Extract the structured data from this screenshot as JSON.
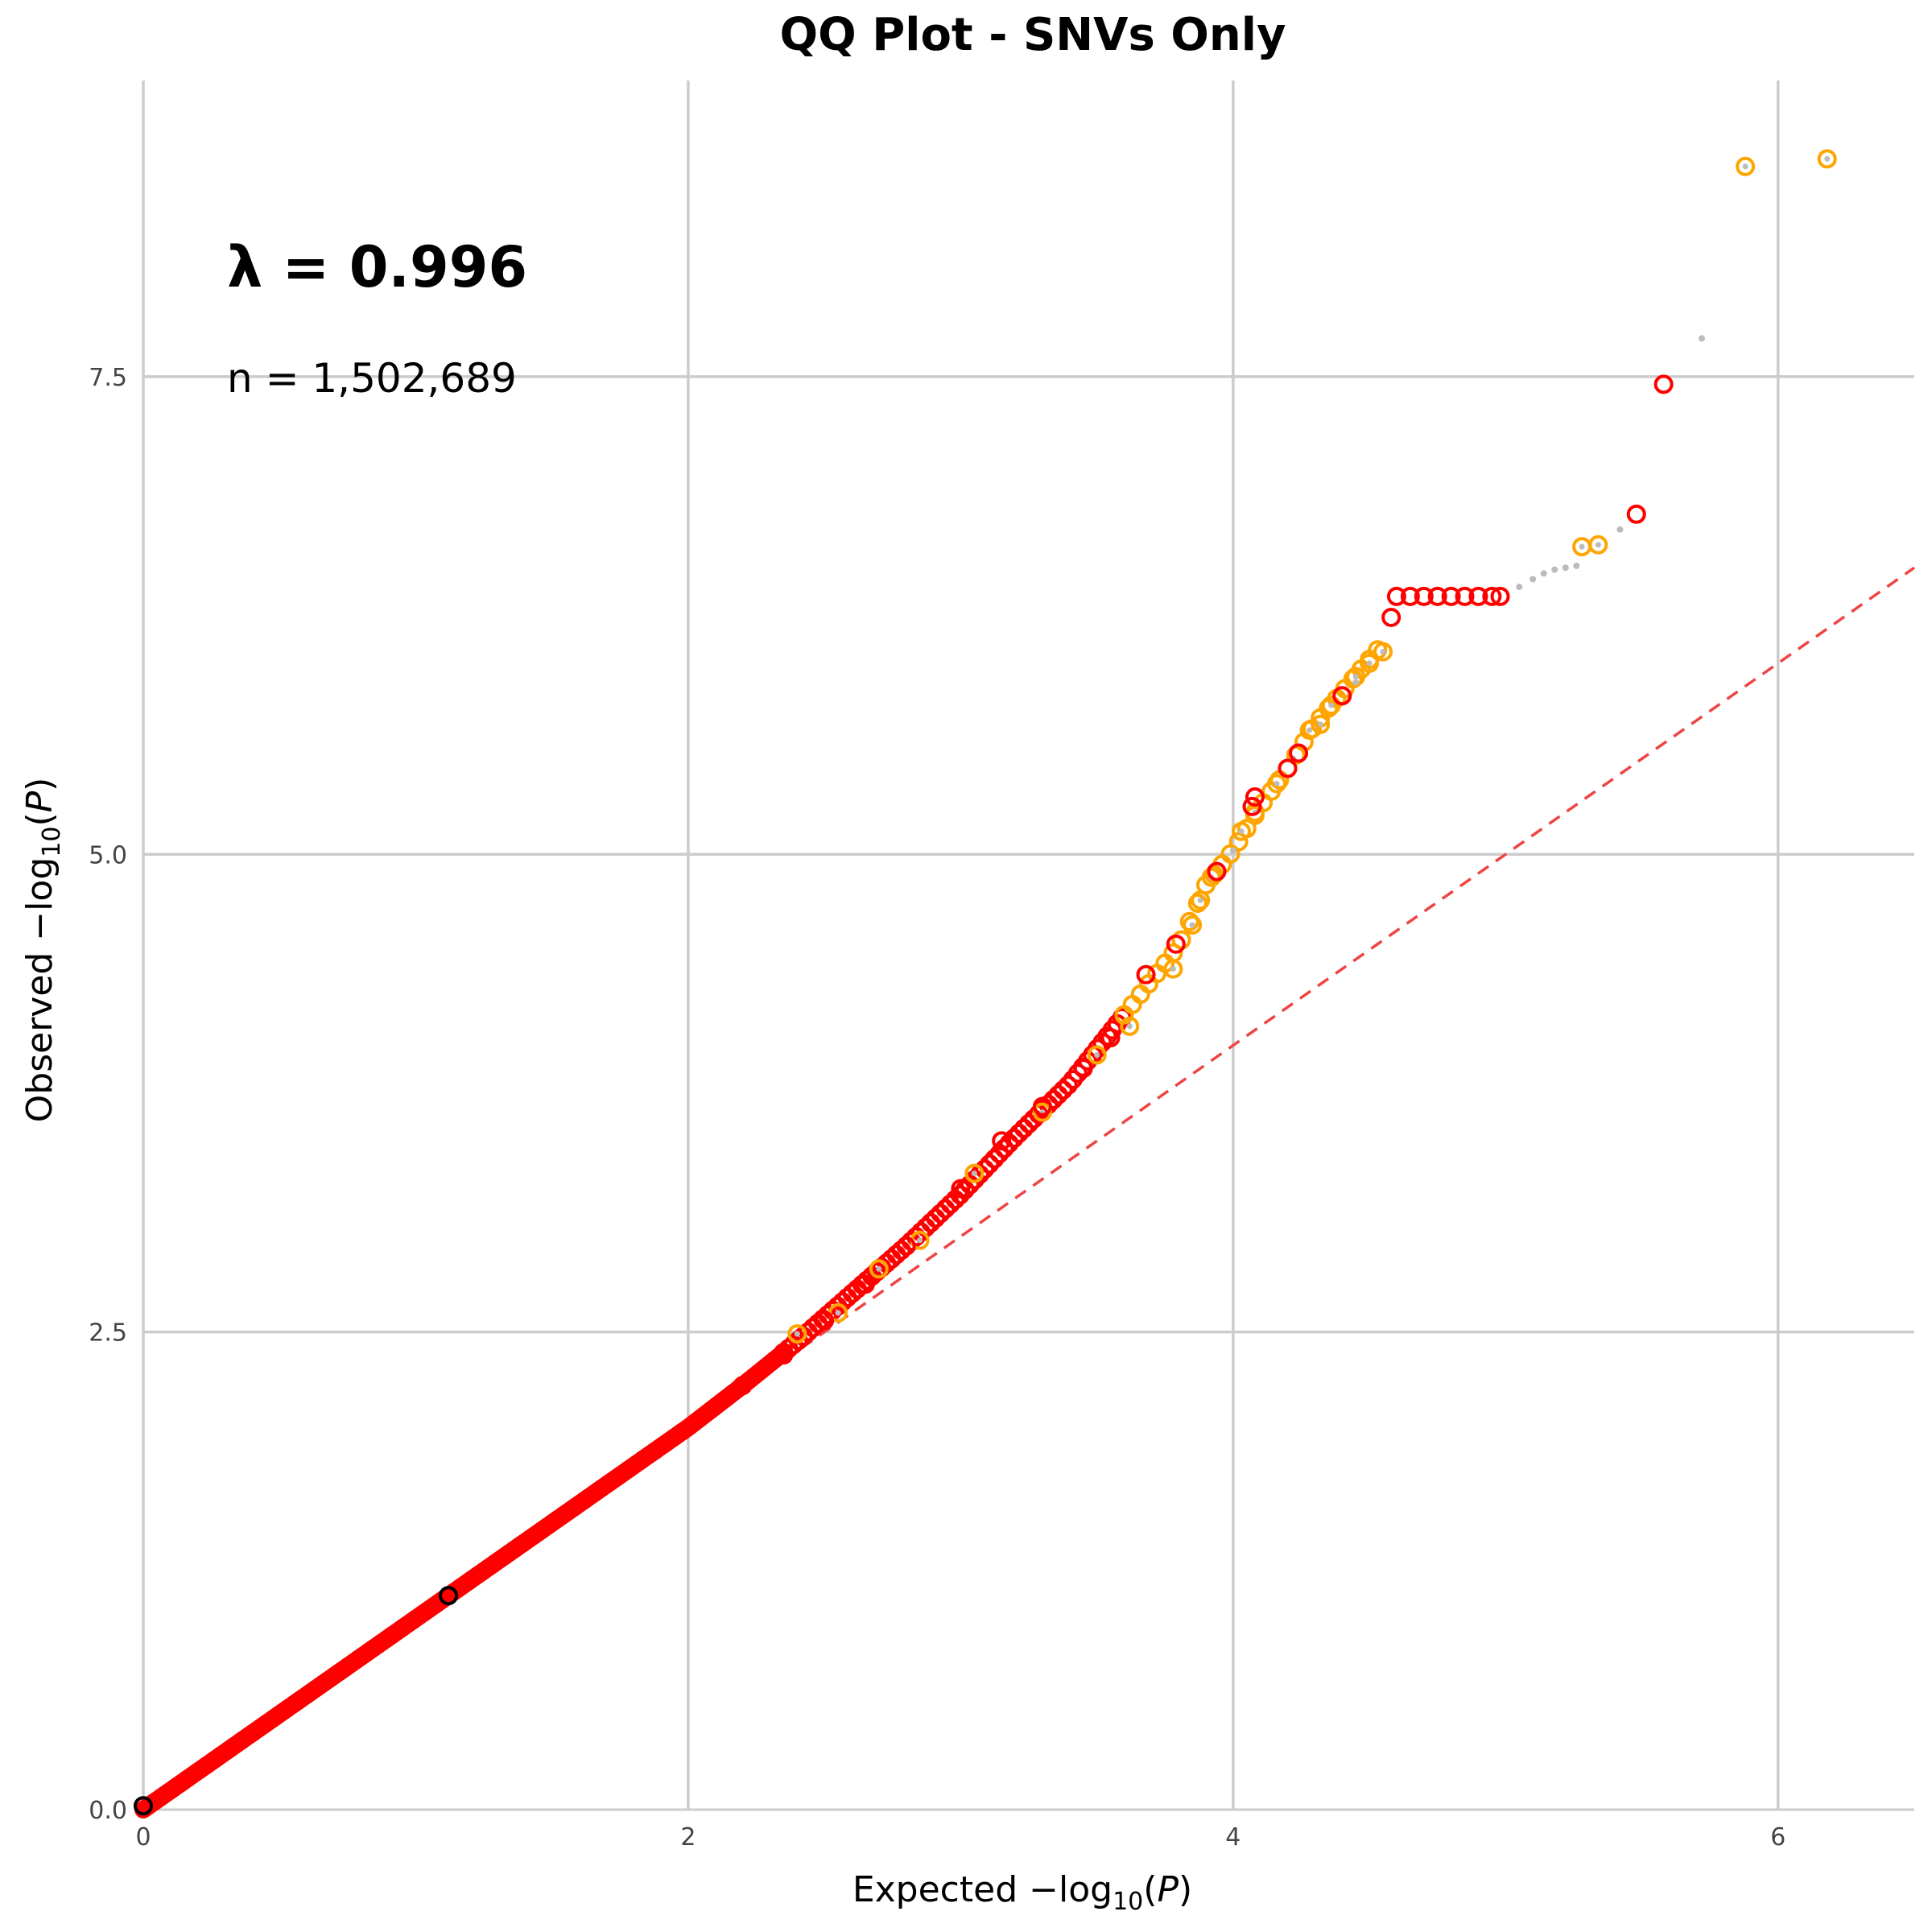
{
  "chart_data": {
    "type": "scatter",
    "title": "QQ Plot - SNVs Only",
    "xlabel": {
      "pre": "Expected  ",
      "minus": "−",
      "log": "log",
      "sub": "10",
      "open": "(",
      "var": "P",
      "close": ")"
    },
    "ylabel": {
      "pre": "Observed  ",
      "minus": "−",
      "log": "log",
      "sub": "10",
      "open": "(",
      "var": "P",
      "close": ")"
    },
    "xlim": [
      0,
      6.5
    ],
    "ylim": [
      0,
      9.05
    ],
    "x_ticks": [
      {
        "v": 0,
        "label": "0"
      },
      {
        "v": 2,
        "label": "2"
      },
      {
        "v": 4,
        "label": "4"
      },
      {
        "v": 6,
        "label": "6"
      }
    ],
    "y_ticks": [
      {
        "v": 0,
        "label": "0.0"
      },
      {
        "v": 2.5,
        "label": "2.5"
      },
      {
        "v": 5,
        "label": "5.0"
      },
      {
        "v": 7.5,
        "label": "7.5"
      }
    ],
    "grid": true,
    "annotations": {
      "lambda": "λ = 0.996",
      "n": "n = 1,502,689"
    },
    "colors": {
      "red": "#ff0000",
      "orange": "#ffa500",
      "grey": "#bbbbbb",
      "black": "#000000",
      "diagonal": "#ee4444",
      "grid": "#cccccc"
    },
    "reference_line": {
      "type": "y=x",
      "style": "dashed",
      "color": "#ee4444"
    },
    "dense_curve": [
      [
        0,
        0
      ],
      [
        1,
        1
      ],
      [
        1.5,
        1.5
      ],
      [
        2,
        2
      ],
      [
        2.2,
        2.22
      ],
      [
        2.4,
        2.45
      ],
      [
        2.6,
        2.7
      ],
      [
        2.8,
        2.95
      ],
      [
        3.0,
        3.22
      ],
      [
        3.2,
        3.52
      ],
      [
        3.4,
        3.8
      ],
      [
        3.6,
        4.16
      ],
      [
        3.8,
        4.52
      ],
      [
        3.9,
        4.84
      ],
      [
        4.0,
        5.02
      ],
      [
        4.1,
        5.25
      ],
      [
        4.2,
        5.45
      ],
      [
        4.3,
        5.68
      ],
      [
        4.4,
        5.85
      ],
      [
        4.5,
        6.02
      ],
      [
        4.56,
        6.12
      ]
    ],
    "orange_points": [
      [
        2.4,
        2.49
      ],
      [
        2.55,
        2.6
      ],
      [
        2.7,
        2.83
      ],
      [
        2.85,
        2.98
      ],
      [
        3.05,
        3.33
      ],
      [
        3.3,
        3.65
      ],
      [
        3.5,
        3.95
      ],
      [
        3.62,
        4.1
      ],
      [
        3.78,
        4.4
      ],
      [
        3.85,
        4.63
      ],
      [
        3.88,
        4.76
      ],
      [
        3.92,
        4.88
      ],
      [
        4.03,
        5.12
      ],
      [
        4.08,
        5.22
      ],
      [
        4.16,
        5.37
      ],
      [
        4.28,
        5.65
      ],
      [
        4.32,
        5.68
      ],
      [
        4.36,
        5.78
      ],
      [
        4.45,
        5.93
      ],
      [
        4.5,
        6.0
      ],
      [
        4.55,
        6.06
      ],
      [
        5.28,
        6.61
      ],
      [
        5.34,
        6.62
      ],
      [
        5.88,
        8.6
      ],
      [
        6.18,
        8.64
      ]
    ],
    "red_points": [
      [
        0,
        0.02
      ],
      [
        2.2,
        2.22
      ],
      [
        2.35,
        2.38
      ],
      [
        2.5,
        2.56
      ],
      [
        2.65,
        2.75
      ],
      [
        2.8,
        2.95
      ],
      [
        3.0,
        3.25
      ],
      [
        3.15,
        3.5
      ],
      [
        3.3,
        3.68
      ],
      [
        3.45,
        3.88
      ],
      [
        3.55,
        4.04
      ],
      [
        3.68,
        4.37
      ],
      [
        3.79,
        4.53
      ],
      [
        3.94,
        4.91
      ],
      [
        4.07,
        5.25
      ],
      [
        4.08,
        5.3
      ],
      [
        4.2,
        5.45
      ],
      [
        4.24,
        5.53
      ],
      [
        4.4,
        5.83
      ],
      [
        4.58,
        6.24
      ],
      [
        4.6,
        6.35
      ],
      [
        4.65,
        6.35
      ],
      [
        4.7,
        6.35
      ],
      [
        4.75,
        6.35
      ],
      [
        4.8,
        6.35
      ],
      [
        4.85,
        6.35
      ],
      [
        4.9,
        6.35
      ],
      [
        4.95,
        6.35
      ],
      [
        4.98,
        6.35
      ],
      [
        5.48,
        6.78
      ],
      [
        5.58,
        7.46
      ]
    ],
    "grey_points": [
      [
        4.0,
        5.02
      ],
      [
        4.22,
        5.5
      ],
      [
        4.45,
        5.9
      ],
      [
        5.05,
        6.4
      ],
      [
        5.1,
        6.44
      ],
      [
        5.14,
        6.47
      ],
      [
        5.18,
        6.49
      ],
      [
        5.22,
        6.5
      ],
      [
        5.26,
        6.51
      ],
      [
        5.42,
        6.7
      ],
      [
        5.72,
        7.7
      ]
    ],
    "black_points": [
      [
        0,
        0.02
      ],
      [
        1.12,
        1.12
      ]
    ]
  }
}
